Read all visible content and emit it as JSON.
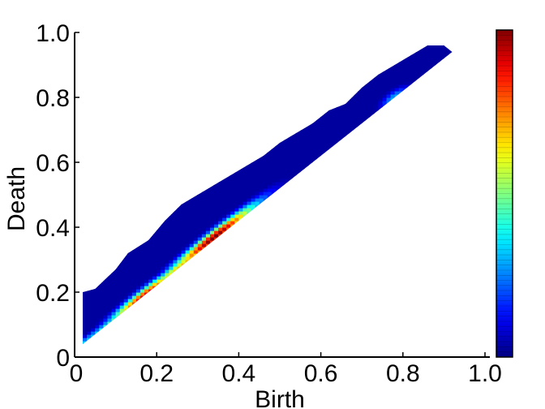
{
  "chart_data": {
    "type": "heatmap",
    "title": "",
    "xlabel": "Birth",
    "ylabel": "Death",
    "xlim": [
      0,
      1
    ],
    "ylim": [
      0,
      1
    ],
    "x_ticks": [
      "0",
      "0.2",
      "0.4",
      "0.6",
      "0.8",
      "1.0"
    ],
    "y_ticks": [
      "0",
      "0.2",
      "0.4",
      "0.6",
      "0.8",
      "1.0"
    ],
    "colorbar": {
      "range": [
        0,
        1
      ],
      "colormap": "jet",
      "position": "right",
      "tick_labels": []
    },
    "grid": false,
    "region": {
      "lower_edge": [
        [
          0.02,
          0.04
        ],
        [
          0.92,
          0.94
        ]
      ],
      "upper_edge": [
        [
          0.02,
          0.2
        ],
        [
          0.05,
          0.21
        ],
        [
          0.1,
          0.27
        ],
        [
          0.13,
          0.32
        ],
        [
          0.18,
          0.36
        ],
        [
          0.22,
          0.42
        ],
        [
          0.26,
          0.47
        ],
        [
          0.3,
          0.5
        ],
        [
          0.34,
          0.53
        ],
        [
          0.38,
          0.56
        ],
        [
          0.42,
          0.59
        ],
        [
          0.46,
          0.62
        ],
        [
          0.5,
          0.66
        ],
        [
          0.54,
          0.69
        ],
        [
          0.58,
          0.72
        ],
        [
          0.62,
          0.76
        ],
        [
          0.66,
          0.78
        ],
        [
          0.7,
          0.83
        ],
        [
          0.74,
          0.87
        ],
        [
          0.78,
          0.9
        ],
        [
          0.82,
          0.93
        ],
        [
          0.86,
          0.96
        ],
        [
          0.9,
          0.96
        ],
        [
          0.92,
          0.94
        ]
      ],
      "background_value": 0.03
    },
    "hotspots": [
      {
        "x": 0.34,
        "y": 0.37,
        "value": 1.0,
        "spread": 0.1
      },
      {
        "x": 0.17,
        "y": 0.19,
        "value": 0.9,
        "spread": 0.08
      },
      {
        "x": 0.27,
        "y": 0.29,
        "value": 0.7,
        "spread": 0.11
      },
      {
        "x": 0.11,
        "y": 0.12,
        "value": 0.55,
        "spread": 0.09
      },
      {
        "x": 0.78,
        "y": 0.8,
        "value": 0.3,
        "spread": 0.03
      }
    ]
  },
  "colors": {
    "axis": "#000000",
    "background": "#ffffff"
  }
}
